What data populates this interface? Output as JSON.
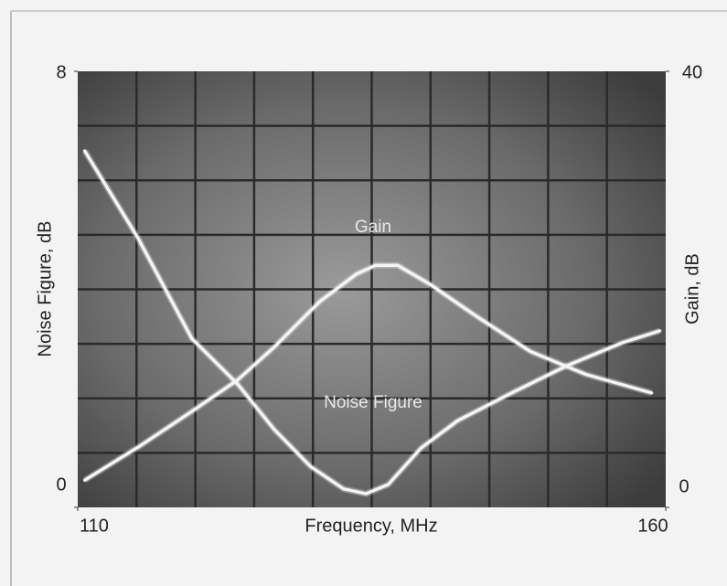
{
  "chart_data": {
    "type": "line",
    "xlabel": "Frequency, MHz",
    "ylabel": "Noise Figure, dB",
    "y2label": "Gain, dB",
    "xlim": [
      110,
      160
    ],
    "xticks": [
      110,
      160
    ],
    "ylim": [
      0,
      8
    ],
    "yticks": [
      0,
      8
    ],
    "y2lim": [
      0,
      40
    ],
    "y2ticks": [
      0,
      40
    ],
    "grid": true,
    "xgrid": [
      115,
      120,
      125,
      130,
      135,
      140,
      145,
      150,
      155
    ],
    "ygrid": [
      1,
      2,
      3,
      4,
      5,
      6,
      7
    ],
    "series": [
      {
        "name": "Noise Figure",
        "color": "#f4f4f4",
        "x": [
          110.6,
          115.1,
          119.7,
          123.6,
          126.7,
          129.8,
          132.6,
          134.5,
          136.4,
          139.2,
          142.3,
          146.9,
          151.6,
          156.3,
          159.5
        ],
        "values": [
          6.54,
          4.95,
          3.1,
          2.26,
          1.43,
          0.75,
          0.34,
          0.25,
          0.42,
          1.09,
          1.59,
          2.1,
          2.6,
          3.02,
          3.24
        ]
      },
      {
        "name": "Gain",
        "color": "#f4f4f4",
        "axis": "y2",
        "x": [
          110.6,
          115.1,
          119.7,
          123.6,
          126.7,
          130.6,
          133.7,
          135.3,
          137.2,
          139.9,
          143.8,
          148.5,
          153.2,
          158.8
        ],
        "values": [
          2.5,
          5.5,
          8.8,
          11.7,
          14.7,
          18.9,
          21.4,
          22.2,
          22.2,
          20.5,
          17.6,
          14.3,
          12.2,
          10.5
        ]
      }
    ]
  }
}
